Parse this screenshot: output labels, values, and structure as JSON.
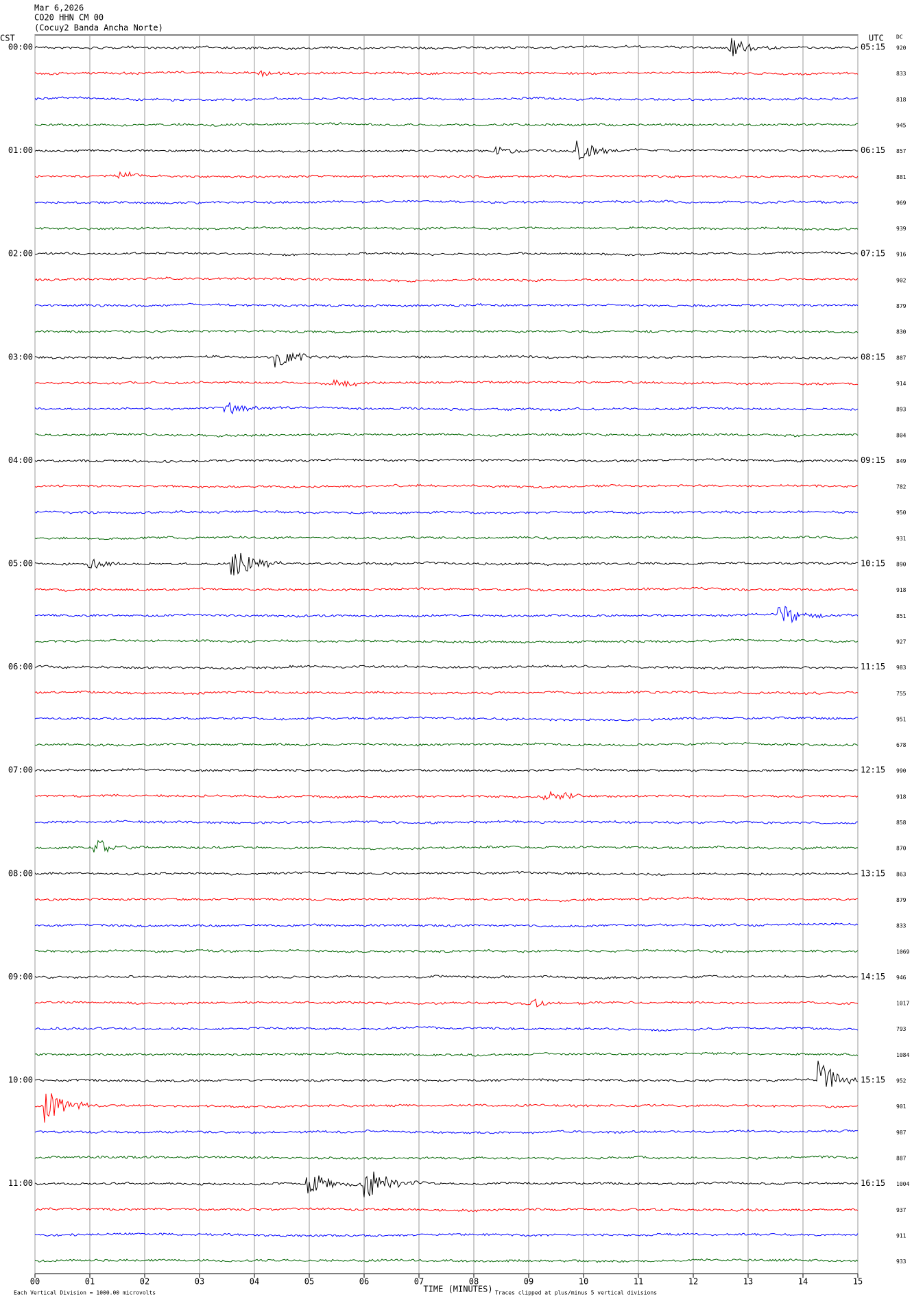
{
  "header": {
    "lines": [
      "Mar 6,2026",
      "CO20 HHN CM 00",
      "(Cocuy2 Banda Ancha Norte)"
    ]
  },
  "left_axis_label": "CST",
  "right_axis_label": "UTC",
  "dc_label": "DC",
  "hours": [
    {
      "cst": "00:00",
      "utc": "05:15"
    },
    {
      "cst": "01:00",
      "utc": "06:15"
    },
    {
      "cst": "02:00",
      "utc": "07:15"
    },
    {
      "cst": "03:00",
      "utc": "08:15"
    },
    {
      "cst": "04:00",
      "utc": "09:15"
    },
    {
      "cst": "05:00",
      "utc": "10:15"
    },
    {
      "cst": "06:00",
      "utc": "11:15"
    },
    {
      "cst": "07:00",
      "utc": "12:15"
    },
    {
      "cst": "08:00",
      "utc": "13:15"
    },
    {
      "cst": "09:00",
      "utc": "14:15"
    },
    {
      "cst": "10:00",
      "utc": "15:15"
    },
    {
      "cst": "11:00",
      "utc": "16:15"
    }
  ],
  "dc": [
    "920",
    "833",
    "818",
    "945",
    "857",
    "881",
    "969",
    "939",
    "916",
    "902",
    "879",
    "830",
    "887",
    "914",
    "893",
    "804",
    "849",
    "782",
    "950",
    "931",
    "890",
    "918",
    "851",
    "927",
    "983",
    "755",
    "951",
    "678",
    "990",
    "918",
    "858",
    "870",
    "863",
    "879",
    "833",
    "1069",
    "946",
    "1017",
    "793",
    "1084",
    "952",
    "901",
    "987",
    "887",
    "1004",
    "937",
    "911",
    "933"
  ],
  "trace_colors": [
    "#000000",
    "#ff0000",
    "#0000ff",
    "#006400"
  ],
  "xlim": [
    0,
    15
  ],
  "xticks": [
    {
      "value": 0,
      "label": "00"
    },
    {
      "value": 1,
      "label": "01"
    },
    {
      "value": 2,
      "label": "02"
    },
    {
      "value": 3,
      "label": "03"
    },
    {
      "value": 4,
      "label": "04"
    },
    {
      "value": 5,
      "label": "05"
    },
    {
      "value": 6,
      "label": "06"
    },
    {
      "value": 7,
      "label": "07"
    },
    {
      "value": 8,
      "label": "08"
    },
    {
      "value": 9,
      "label": "09"
    },
    {
      "value": 10,
      "label": "10"
    },
    {
      "value": 11,
      "label": "11"
    },
    {
      "value": 12,
      "label": "12"
    },
    {
      "value": 13,
      "label": "13"
    },
    {
      "value": 14,
      "label": "14"
    },
    {
      "value": 15,
      "label": "15"
    }
  ],
  "xlabel": "TIME (MINUTES)",
  "footer": {
    "scale": "Each Vertical Division = 1000.00 microvolts",
    "clip": "Traces clipped at plus/minus 5 vertical divisions"
  }
}
